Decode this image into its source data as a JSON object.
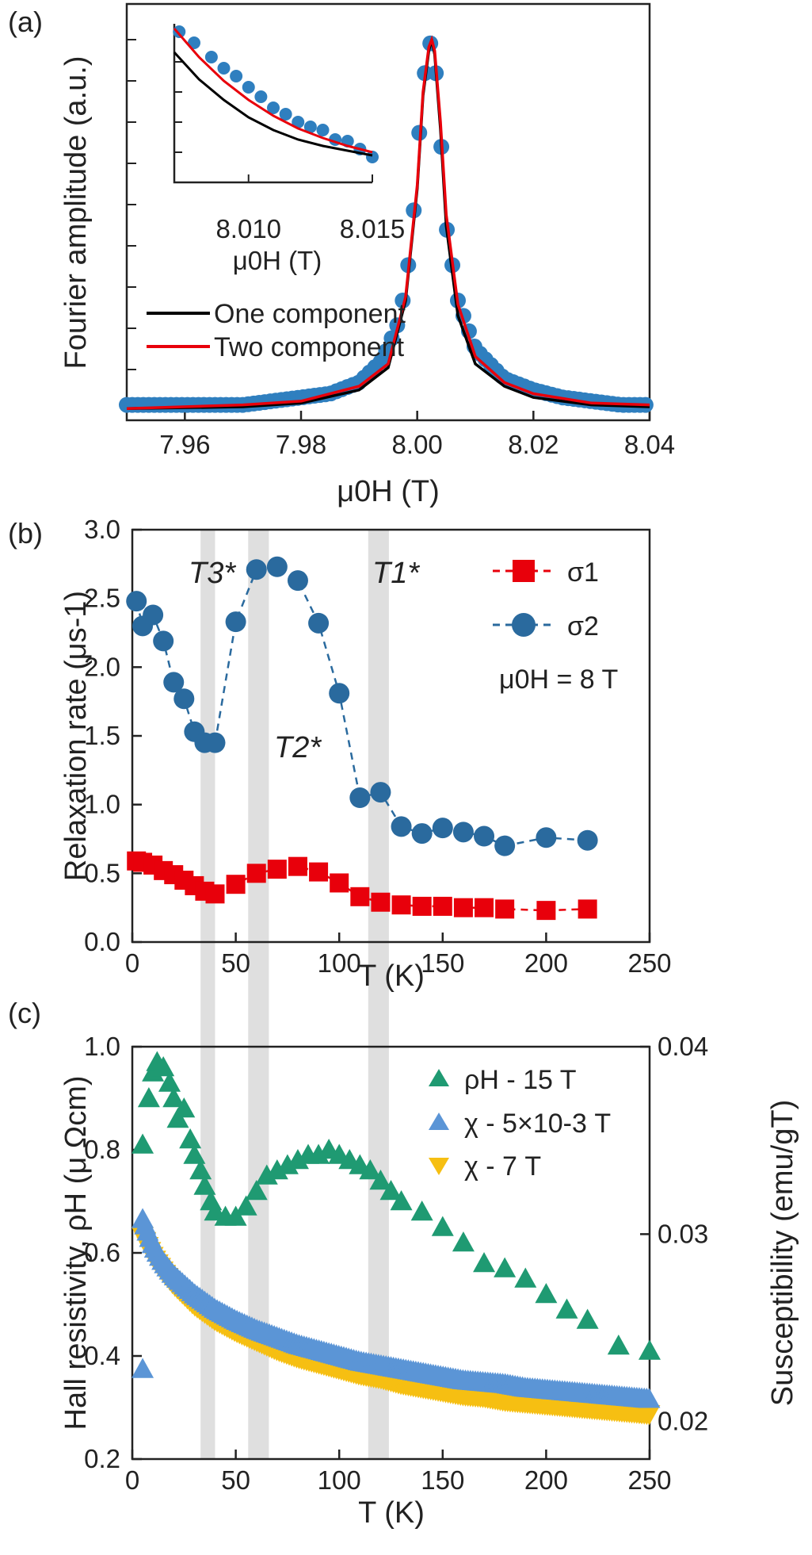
{
  "colors": {
    "s1": "#e8000b",
    "s2": "#2a6a9e",
    "data_a": "#2f7fbf",
    "one": "#000000",
    "two": "#e8000b",
    "rhoH": "#1f9a72",
    "chi_small": "#5b95d6",
    "chi_7T": "#f6bf12",
    "shade": "#d9d9d9"
  },
  "chart_data": [
    {
      "panel": "(a)",
      "type": "line",
      "xlabel": "μ0H (T)",
      "ylabel": "Fourier amplitude (a.u.)",
      "xlim": [
        7.95,
        8.04
      ],
      "xticks": [
        "7.96",
        "7.98",
        "8.00",
        "8.02",
        "8.04"
      ],
      "legend": [
        "One component",
        "Two component"
      ],
      "legend_position": "center-left",
      "data_points": {
        "x": [
          7.95,
          7.955,
          7.96,
          7.965,
          7.97,
          7.975,
          7.98,
          7.985,
          7.99,
          7.994,
          7.997,
          7.999,
          8.0,
          8.001,
          8.002,
          8.0025,
          8.003,
          8.004,
          8.005,
          8.007,
          8.01,
          8.015,
          8.02,
          8.025,
          8.03,
          8.035,
          8.04
        ],
        "y": [
          0.02,
          0.02,
          0.02,
          0.02,
          0.02,
          0.03,
          0.04,
          0.05,
          0.08,
          0.14,
          0.25,
          0.45,
          0.68,
          0.88,
          0.98,
          1.0,
          0.95,
          0.75,
          0.5,
          0.3,
          0.17,
          0.09,
          0.06,
          0.04,
          0.03,
          0.02,
          0.02
        ]
      },
      "series": [
        {
          "name": "One component",
          "x": [
            7.95,
            7.97,
            7.98,
            7.99,
            7.995,
            7.998,
            8.0,
            8.001,
            8.002,
            8.0025,
            8.003,
            8.004,
            8.005,
            8.007,
            8.01,
            8.015,
            8.02,
            8.03,
            8.04
          ],
          "y": [
            0.01,
            0.015,
            0.025,
            0.06,
            0.12,
            0.3,
            0.6,
            0.85,
            0.97,
            1.0,
            0.96,
            0.76,
            0.5,
            0.26,
            0.13,
            0.07,
            0.04,
            0.02,
            0.015
          ]
        },
        {
          "name": "Two component",
          "x": [
            7.95,
            7.97,
            7.98,
            7.99,
            7.995,
            7.998,
            8.0,
            8.001,
            8.002,
            8.0025,
            8.003,
            8.004,
            8.005,
            8.007,
            8.01,
            8.015,
            8.02,
            8.03,
            8.04
          ],
          "y": [
            0.01,
            0.02,
            0.03,
            0.07,
            0.13,
            0.31,
            0.61,
            0.86,
            0.98,
            1.0,
            0.97,
            0.78,
            0.53,
            0.29,
            0.15,
            0.08,
            0.05,
            0.025,
            0.02
          ]
        }
      ],
      "inset": {
        "xlim": [
          8.007,
          8.015
        ],
        "xticks": [
          "8.010",
          "8.015"
        ],
        "xlabel": "μ0H (T)",
        "points": {
          "x": [
            8.0072,
            8.0078,
            8.0085,
            8.009,
            8.0095,
            8.01,
            8.0105,
            8.011,
            8.0115,
            8.012,
            8.0125,
            8.013,
            8.0135,
            8.014,
            8.0145,
            8.015
          ],
          "y": [
            0.95,
            0.88,
            0.79,
            0.72,
            0.67,
            0.6,
            0.54,
            0.47,
            0.43,
            0.38,
            0.35,
            0.33,
            0.27,
            0.26,
            0.21,
            0.16
          ]
        },
        "one_component": {
          "x": [
            8.007,
            8.008,
            8.009,
            8.01,
            8.011,
            8.012,
            8.013,
            8.014,
            8.015
          ],
          "y": [
            0.82,
            0.65,
            0.52,
            0.41,
            0.33,
            0.27,
            0.23,
            0.2,
            0.17
          ]
        },
        "two_component": {
          "x": [
            8.007,
            8.008,
            8.009,
            8.01,
            8.011,
            8.012,
            8.013,
            8.014,
            8.015
          ],
          "y": [
            0.97,
            0.79,
            0.64,
            0.52,
            0.42,
            0.34,
            0.28,
            0.23,
            0.19
          ]
        }
      }
    },
    {
      "panel": "(b)",
      "type": "scatter",
      "xlabel": "T (K)",
      "ylabel": "Relaxation rate (μs-1)",
      "xlim": [
        0,
        250
      ],
      "ylim": [
        0,
        3.0
      ],
      "xticks": [
        "0",
        "50",
        "100",
        "150",
        "200",
        "250"
      ],
      "yticks": [
        "0.0",
        "0.5",
        "1.0",
        "1.5",
        "2.0",
        "2.5",
        "3.0"
      ],
      "annotations": [
        "T3*",
        "T2*",
        "T1*"
      ],
      "field_label": "μ0H = 8 T",
      "series": [
        {
          "name": "σ1",
          "x": [
            2,
            5,
            10,
            15,
            20,
            25,
            30,
            35,
            40,
            50,
            60,
            70,
            80,
            90,
            100,
            110,
            120,
            130,
            140,
            150,
            160,
            170,
            180,
            200,
            220
          ],
          "y": [
            0.59,
            0.58,
            0.56,
            0.52,
            0.49,
            0.45,
            0.41,
            0.37,
            0.35,
            0.42,
            0.5,
            0.53,
            0.55,
            0.51,
            0.43,
            0.33,
            0.29,
            0.27,
            0.26,
            0.26,
            0.25,
            0.25,
            0.24,
            0.23,
            0.24
          ]
        },
        {
          "name": "σ2",
          "x": [
            2,
            5,
            10,
            15,
            20,
            25,
            30,
            35,
            40,
            50,
            60,
            70,
            80,
            90,
            100,
            110,
            120,
            130,
            140,
            150,
            160,
            170,
            180,
            200,
            220
          ],
          "y": [
            2.48,
            2.3,
            2.38,
            2.19,
            1.89,
            1.77,
            1.53,
            1.45,
            1.45,
            2.33,
            2.71,
            2.73,
            2.63,
            2.32,
            1.81,
            1.05,
            1.09,
            0.84,
            0.79,
            0.83,
            0.8,
            0.77,
            0.7,
            0.76,
            0.74
          ]
        }
      ]
    },
    {
      "panel": "(c)",
      "type": "scatter",
      "xlabel": "T (K)",
      "ylabel": "Hall resistivity, ρH (μ Ωcm)",
      "y2label": "Susceptibility (emu/gT)",
      "xlim": [
        0,
        250
      ],
      "ylim": [
        0.2,
        1.0
      ],
      "y2lim": [
        0.018,
        0.04
      ],
      "xticks": [
        "0",
        "50",
        "100",
        "150",
        "200",
        "250"
      ],
      "yticks": [
        "0.2",
        "0.4",
        "0.6",
        "0.8",
        "1.0"
      ],
      "y2ticks": [
        "0.02",
        "0.03",
        "0.04"
      ],
      "series": [
        {
          "name": "ρH - 15 T",
          "x": [
            5,
            8,
            10,
            12,
            15,
            18,
            20,
            22,
            25,
            28,
            30,
            33,
            35,
            38,
            40,
            45,
            50,
            55,
            60,
            65,
            70,
            75,
            80,
            85,
            90,
            95,
            100,
            105,
            110,
            115,
            120,
            125,
            130,
            140,
            150,
            160,
            170,
            180,
            190,
            200,
            210,
            220,
            235,
            250
          ],
          "y": [
            0.81,
            0.9,
            0.95,
            0.97,
            0.96,
            0.93,
            0.9,
            0.86,
            0.88,
            0.82,
            0.79,
            0.76,
            0.73,
            0.7,
            0.68,
            0.67,
            0.67,
            0.69,
            0.72,
            0.75,
            0.76,
            0.77,
            0.78,
            0.79,
            0.79,
            0.8,
            0.79,
            0.78,
            0.77,
            0.76,
            0.74,
            0.72,
            0.7,
            0.68,
            0.65,
            0.62,
            0.58,
            0.57,
            0.55,
            0.52,
            0.49,
            0.47,
            0.42,
            0.41
          ]
        },
        {
          "name": "χ - 5×10-3 T",
          "x": [
            5,
            10,
            15,
            20,
            30,
            40,
            50,
            60,
            70,
            80,
            90,
            100,
            110,
            120,
            130,
            140,
            150,
            160,
            170,
            180,
            190,
            200,
            210,
            220,
            230,
            240,
            250
          ],
          "y": [
            0.0308,
            0.0294,
            0.0285,
            0.0278,
            0.0268,
            0.026,
            0.0254,
            0.0249,
            0.0245,
            0.0241,
            0.0238,
            0.0235,
            0.0232,
            0.023,
            0.0228,
            0.0226,
            0.0224,
            0.0222,
            0.0221,
            0.022,
            0.0218,
            0.0217,
            0.0216,
            0.0215,
            0.0214,
            0.0213,
            0.0212
          ]
        },
        {
          "name": "χ - 7 T",
          "x": [
            5,
            10,
            15,
            20,
            30,
            40,
            50,
            60,
            70,
            80,
            90,
            100,
            110,
            120,
            130,
            140,
            150,
            160,
            170,
            180,
            190,
            200,
            210,
            220,
            230,
            240,
            250
          ],
          "y": [
            0.0299,
            0.0288,
            0.028,
            0.0273,
            0.0262,
            0.0254,
            0.0248,
            0.0243,
            0.0238,
            0.0234,
            0.0231,
            0.0228,
            0.0225,
            0.0223,
            0.022,
            0.0218,
            0.0216,
            0.0214,
            0.0213,
            0.0211,
            0.021,
            0.0209,
            0.0208,
            0.0207,
            0.0206,
            0.0205,
            0.0204
          ]
        }
      ]
    }
  ]
}
